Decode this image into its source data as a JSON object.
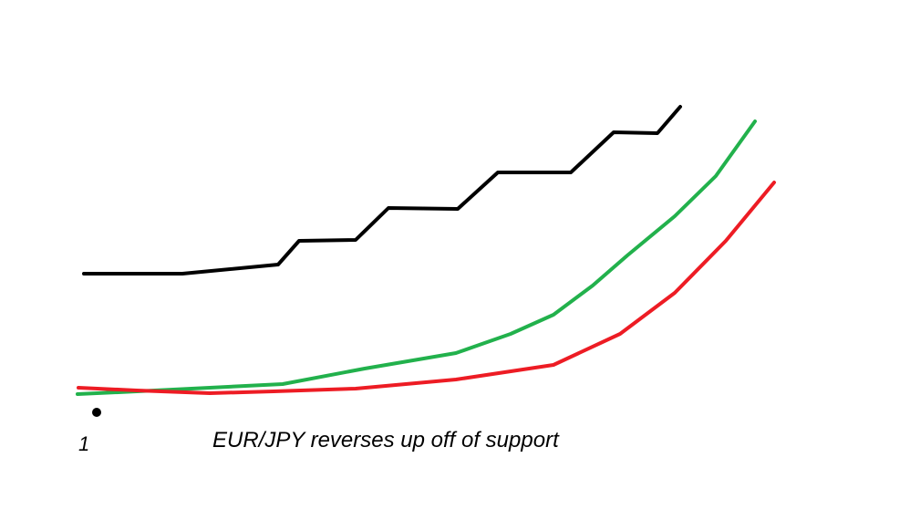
{
  "caption": "EUR/JPY reverses up off of support",
  "marker": {
    "label": "1"
  },
  "lines": [
    {
      "id": "price-line",
      "color": "#000000"
    },
    {
      "id": "green-ma-line",
      "color": "#22b14c"
    },
    {
      "id": "red-ma-line",
      "color": "#ed1c24"
    }
  ]
}
